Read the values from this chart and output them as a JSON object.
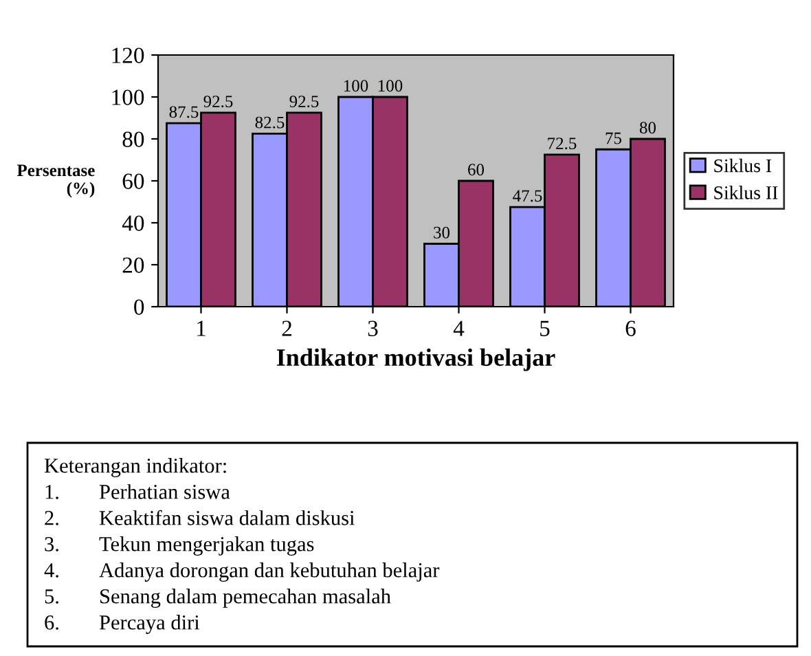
{
  "chart_data": {
    "type": "bar",
    "categories": [
      "1",
      "2",
      "3",
      "4",
      "5",
      "6"
    ],
    "series": [
      {
        "name": "Siklus I",
        "color": "#9999ff",
        "values": [
          87.5,
          82.5,
          100,
          30,
          47.5,
          75
        ]
      },
      {
        "name": "Siklus II",
        "color": "#993366",
        "values": [
          92.5,
          92.5,
          100,
          60,
          72.5,
          80
        ]
      }
    ],
    "xlabel": "Indikator motivasi belajar",
    "ylabel": "Persentase\n(%)",
    "ylim": [
      0,
      120
    ],
    "yticks": [
      0,
      20,
      40,
      60,
      80,
      100,
      120
    ],
    "data_labels": true,
    "legend": "right",
    "grid": false,
    "annotations": [
      "Keterangan indikator:",
      "1.\tPerhatian siswa",
      "2.\tKeaktifan siswa dalam diskusi",
      "3.\tTekun mengerjakan tugas",
      "4.\tAdanya dorongan dan kebutuhan belajar",
      "5.\tSenang dalam pemecahan masalah",
      "6.\tPercaya diri"
    ]
  }
}
